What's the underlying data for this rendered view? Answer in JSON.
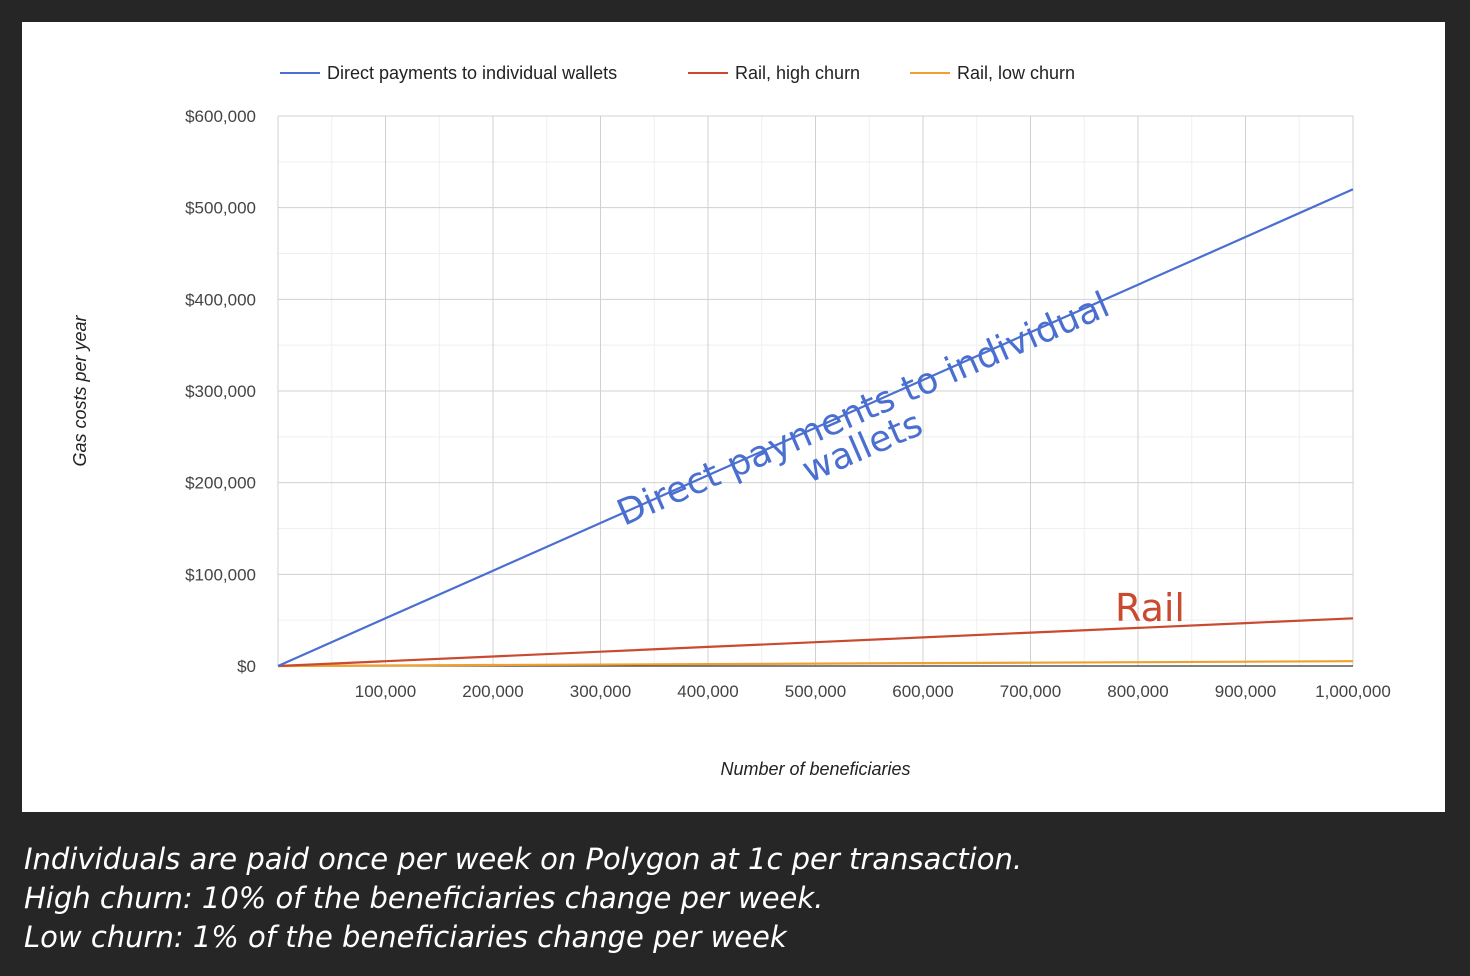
{
  "chart_data": {
    "type": "line",
    "title": "",
    "xlabel": "Number of beneficiaries",
    "ylabel": "Gas costs per year",
    "x": [
      0,
      100000,
      200000,
      300000,
      400000,
      500000,
      600000,
      700000,
      800000,
      900000,
      1000000
    ],
    "x_ticks": [
      100000,
      200000,
      300000,
      400000,
      500000,
      600000,
      700000,
      800000,
      900000,
      1000000
    ],
    "x_tick_labels": [
      "100,000",
      "200,000",
      "300,000",
      "400,000",
      "500,000",
      "600,000",
      "700,000",
      "800,000",
      "900,000",
      "1,000,000"
    ],
    "xlim": [
      0,
      1000000
    ],
    "y_ticks": [
      0,
      100000,
      200000,
      300000,
      400000,
      500000,
      600000
    ],
    "y_tick_labels": [
      "$0",
      "$100,000",
      "$200,000",
      "$300,000",
      "$400,000",
      "$500,000",
      "$600,000"
    ],
    "ylim": [
      0,
      600000
    ],
    "grid": true,
    "legend_position": "top",
    "series": [
      {
        "name": "Direct payments to individual wallets",
        "color": "#4a6fd0",
        "values": [
          0,
          52000,
          104000,
          156000,
          208000,
          260000,
          312000,
          364000,
          416000,
          468000,
          520000
        ]
      },
      {
        "name": "Rail, high churn",
        "color": "#c94a2e",
        "values": [
          0,
          5200,
          10400,
          15600,
          20800,
          26000,
          31200,
          36400,
          41600,
          46800,
          52000
        ]
      },
      {
        "name": "Rail, low churn",
        "color": "#f0a030",
        "values": [
          0,
          520,
          1040,
          1560,
          2080,
          2600,
          3120,
          3640,
          4160,
          4680,
          5200
        ]
      }
    ],
    "annotations": [
      {
        "text": "Direct payments to individual",
        "color": "#4a6fd0"
      },
      {
        "text": "wallets",
        "color": "#4a6fd0"
      },
      {
        "text": "Rail",
        "color": "#c94a2e"
      }
    ]
  },
  "caption": {
    "lines": [
      "Individuals are paid once per week on Polygon at 1c per transaction.",
      "High churn: 10% of the beneficiaries change per week.",
      "Low churn: 1% of the beneficiaries change per week"
    ]
  }
}
